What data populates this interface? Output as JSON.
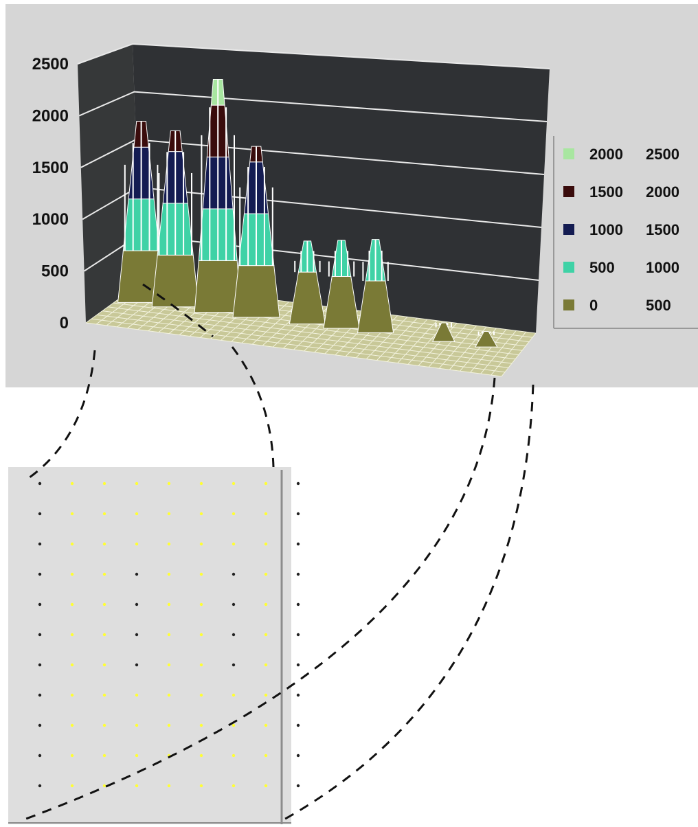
{
  "chart_data": {
    "type": "area",
    "subtype": "3d-surface",
    "title": "",
    "xlabel": "",
    "ylabel": "",
    "zlim": [
      0,
      2500
    ],
    "z_ticks": [
      "0",
      "500",
      "1000",
      "1500",
      "2000",
      "2500"
    ],
    "legend_position": "right",
    "bands": [
      {
        "from": "2000",
        "to": "2500",
        "color": "#a8e6a0"
      },
      {
        "from": "1500",
        "to": "2000",
        "color": "#3a0c0c"
      },
      {
        "from": "1000",
        "to": "1500",
        "color": "#141c52"
      },
      {
        "from": "500",
        "to": "1000",
        "color": "#3fd2a6"
      },
      {
        "from": "0",
        "to": "500",
        "color": "#7a7a36"
      }
    ],
    "peaks": [
      {
        "x": 0.13,
        "value": 1750,
        "color": "#48537a"
      },
      {
        "x": 0.21,
        "value": 1700,
        "color": "#48537a"
      },
      {
        "x": 0.31,
        "value": 2250,
        "color": "#9d7a82"
      },
      {
        "x": 0.4,
        "value": 1650,
        "color": "#48537a"
      },
      {
        "x": 0.52,
        "value": 800,
        "color": "#3fd2a6"
      },
      {
        "x": 0.6,
        "value": 850,
        "color": "#3fd2a6"
      },
      {
        "x": 0.68,
        "value": 900,
        "color": "#3fd2a6"
      },
      {
        "x": 0.84,
        "value": 180,
        "color": "#7a7a36"
      },
      {
        "x": 0.94,
        "value": 150,
        "color": "#7a7a36"
      }
    ]
  },
  "grid_panel": {
    "rows": 11,
    "cols": 9,
    "dot_color": "#ffff33",
    "dark_dot_color": "#222222"
  },
  "colors": {
    "panel_background": "#d6d6d6",
    "back_wall": "#2f3134",
    "side_wall": "#363839",
    "floor": "#c8c898",
    "gridline": "#e9e9e9",
    "grid_panel_background": "#dedede"
  }
}
